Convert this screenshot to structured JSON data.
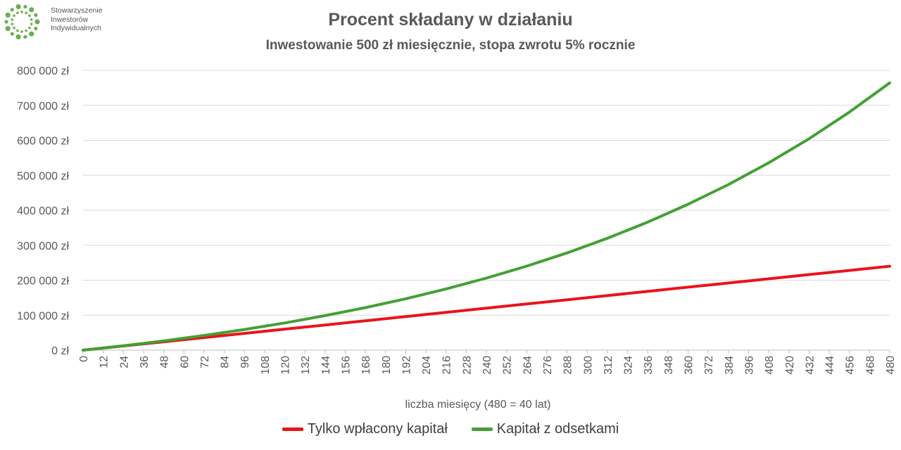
{
  "logo": {
    "lines": [
      "Stowarzyszenie",
      "Inwestorów",
      "Indywidualnych"
    ],
    "color": "#6ab04c"
  },
  "chart_data": {
    "type": "line",
    "title": "Procent składany w działaniu",
    "subtitle": "Inwestowanie 500 zł miesięcznie, stopa zwrotu 5% rocznie",
    "xlabel": "liczba miesięcy (480 = 40 lat)",
    "ylabel": "",
    "x_ticks": [
      0,
      12,
      24,
      36,
      48,
      60,
      72,
      84,
      96,
      108,
      120,
      132,
      144,
      156,
      168,
      180,
      192,
      204,
      216,
      228,
      240,
      252,
      264,
      276,
      288,
      300,
      312,
      324,
      336,
      348,
      360,
      372,
      384,
      396,
      408,
      420,
      432,
      444,
      456,
      468,
      480
    ],
    "xlim": [
      0,
      480
    ],
    "y_ticks": [
      0,
      100000,
      200000,
      300000,
      400000,
      500000,
      600000,
      700000,
      800000
    ],
    "y_tick_labels": [
      "0 zł",
      "100 000 zł",
      "200 000 zł",
      "300 000 zł",
      "400 000 zł",
      "500 000 zł",
      "600 000 zł",
      "700 000 zł",
      "800 000 zł"
    ],
    "ylim": [
      0,
      800000
    ],
    "grid": true,
    "legend_position": "bottom",
    "x": [
      0,
      24,
      48,
      72,
      96,
      120,
      144,
      168,
      192,
      216,
      240,
      264,
      288,
      312,
      336,
      360,
      384,
      408,
      432,
      456,
      480
    ],
    "series": [
      {
        "name": "Tylko wpłacony kapitał",
        "color": "#e8141c",
        "values": [
          0,
          12000,
          24000,
          36000,
          48000,
          60000,
          72000,
          84000,
          96000,
          108000,
          120000,
          132000,
          144000,
          156000,
          168000,
          180000,
          192000,
          204000,
          216000,
          228000,
          240000
        ]
      },
      {
        "name": "Kapitał z odsetkami",
        "color": "#43a034",
        "values": [
          0,
          12600,
          26500,
          42000,
          59000,
          77800,
          98600,
          121600,
          147000,
          175000,
          206000,
          240200,
          278000,
          319800,
          366000,
          417000,
          473400,
          535700,
          604500,
          680600,
          764000
        ]
      }
    ]
  }
}
